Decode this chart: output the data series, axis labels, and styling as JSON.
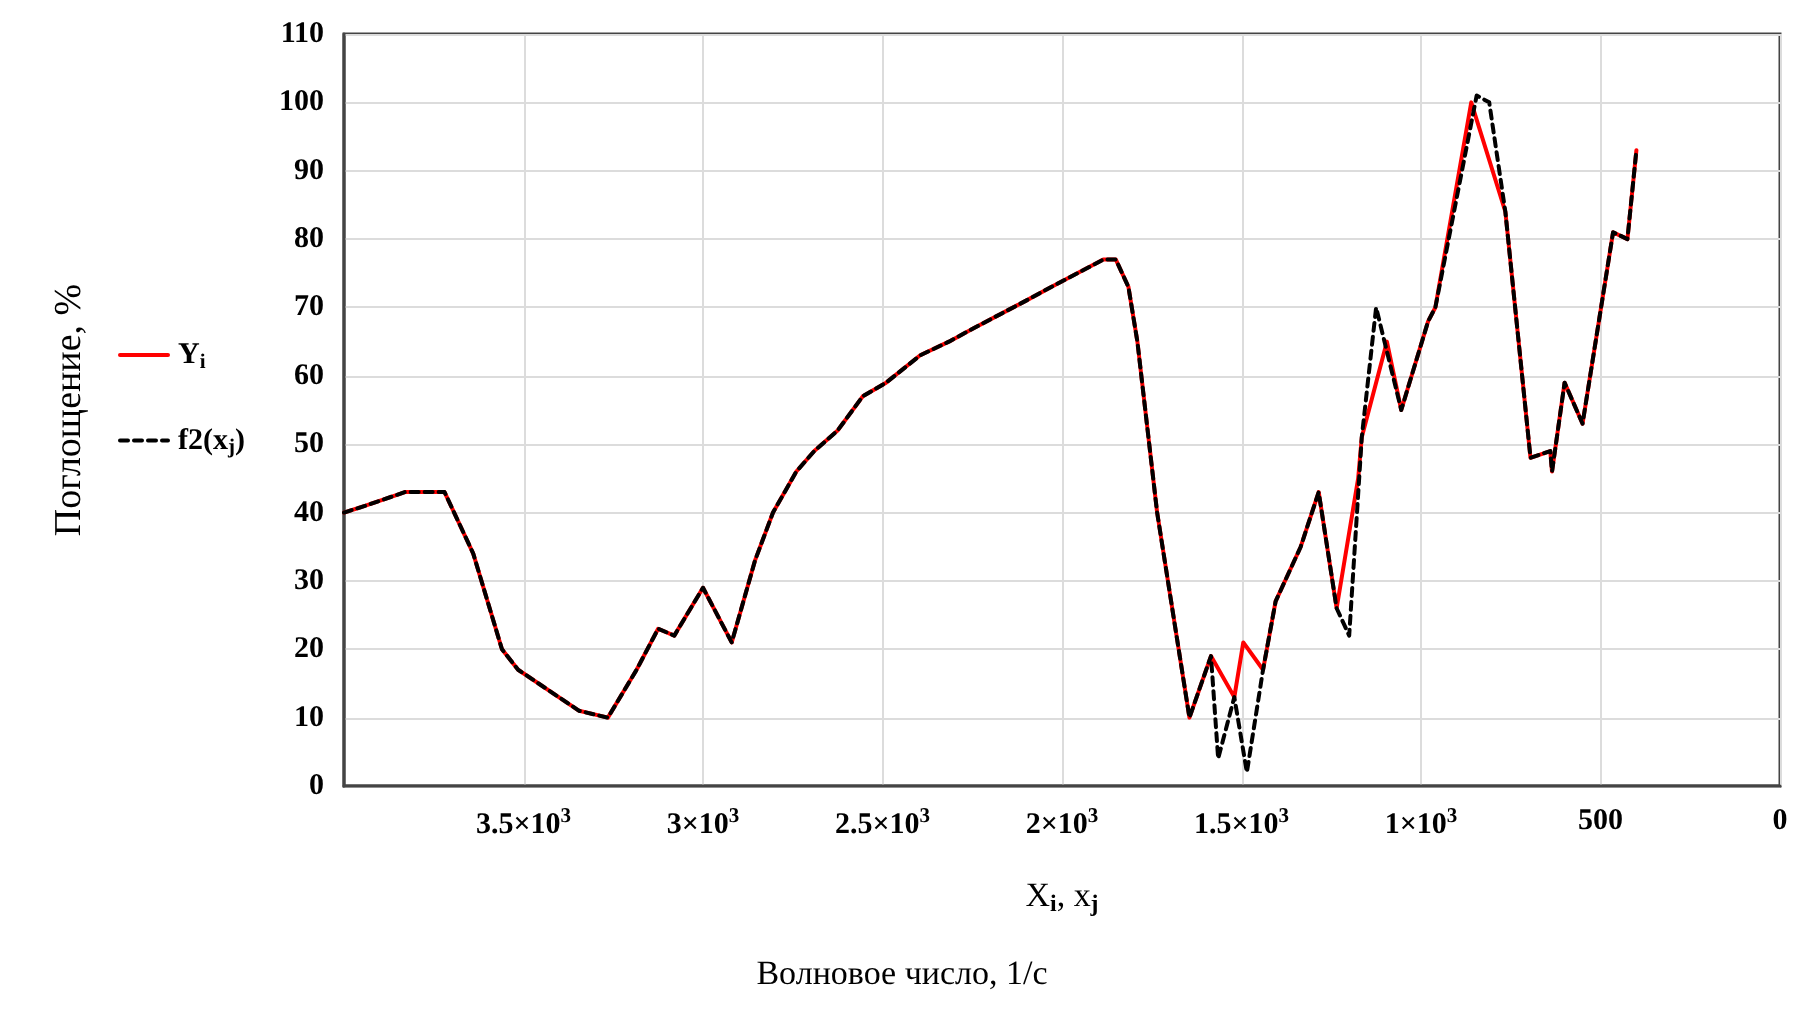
{
  "chart_data": {
    "type": "line",
    "xlabel": "X$_{i}$, x$_{j}$",
    "ylabel": "Поглощение, %",
    "annotations": [
      "Волновое число, 1/с"
    ],
    "xlim": [
      4000,
      0
    ],
    "xticks": [
      {
        "value": 3500,
        "label": "3.5×10$^{3}$"
      },
      {
        "value": 3000,
        "label": "3×10$^{3}$"
      },
      {
        "value": 2500,
        "label": "2.5×10$^{3}$"
      },
      {
        "value": 2000,
        "label": "2×10$^{3}$"
      },
      {
        "value": 1500,
        "label": "1.5×10$^{3}$"
      },
      {
        "value": 1000,
        "label": "1×10$^{3}$"
      },
      500,
      0
    ],
    "ylim": [
      0,
      110
    ],
    "yticks": [
      0,
      10,
      20,
      30,
      40,
      50,
      60,
      70,
      80,
      90,
      100,
      110
    ],
    "grid": true,
    "legend": "left",
    "marker": "none",
    "series": [
      {
        "name": "Y$_{i}$",
        "color": "#ff0000",
        "line_style": "solid",
        "x": [
          4000,
          3940,
          3830,
          3720,
          3640,
          3560,
          3515,
          3345,
          3265,
          3185,
          3125,
          3080,
          3000,
          2920,
          2855,
          2805,
          2740,
          2690,
          2625,
          2555,
          2490,
          2395,
          2315,
          2245,
          2100,
          2030,
          1885,
          1850,
          1815,
          1790,
          1735,
          1645,
          1585,
          1520,
          1495,
          1440,
          1405,
          1335,
          1285,
          1235,
          1175,
          1165,
          1095,
          1055,
          980,
          960,
          860,
          765,
          695,
          640,
          635,
          600,
          550,
          465,
          425,
          400
        ],
        "values": [
          40,
          41,
          43,
          43,
          34,
          20,
          17,
          11,
          10,
          17,
          23,
          22,
          29,
          21,
          33,
          40,
          46,
          49,
          52,
          57,
          59,
          63,
          65,
          67,
          71,
          73,
          77,
          77,
          73,
          65,
          40,
          10,
          19,
          13,
          21,
          17,
          27,
          35,
          43,
          26,
          45,
          51,
          65,
          55,
          68,
          70,
          100,
          84,
          48,
          49,
          46,
          59,
          53,
          81,
          80,
          93
        ]
      },
      {
        "name": "f2(x$_{j}$)",
        "color": "#000000",
        "line_style": "dashed",
        "x": [
          4000,
          3940,
          3830,
          3720,
          3640,
          3560,
          3515,
          3345,
          3265,
          3185,
          3125,
          3080,
          3000,
          2920,
          2855,
          2805,
          2740,
          2690,
          2625,
          2555,
          2490,
          2395,
          2315,
          2245,
          2100,
          2030,
          1885,
          1850,
          1815,
          1790,
          1735,
          1645,
          1585,
          1565,
          1520,
          1485,
          1440,
          1405,
          1335,
          1285,
          1235,
          1200,
          1165,
          1125,
          1055,
          980,
          960,
          845,
          810,
          765,
          695,
          640,
          635,
          600,
          550,
          465,
          425,
          400
        ],
        "values": [
          40,
          41,
          43,
          43,
          34,
          20,
          17,
          11,
          10,
          17,
          23,
          22,
          29,
          21,
          33,
          40,
          46,
          49,
          52,
          57,
          59,
          63,
          65,
          67,
          71,
          73,
          77,
          77,
          73,
          65,
          40,
          10,
          19,
          4,
          13,
          2,
          17,
          27,
          35,
          43,
          26,
          22,
          51,
          70,
          55,
          68,
          70,
          101,
          100,
          84,
          48,
          49,
          46,
          59,
          53,
          81,
          80,
          93
        ]
      }
    ]
  }
}
